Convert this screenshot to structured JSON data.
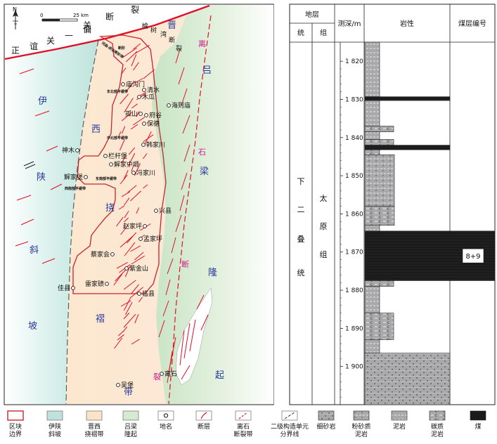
{
  "map": {
    "north_label": "N",
    "scale": {
      "zero": "0",
      "distance": "25 km"
    },
    "fault_labels": {
      "guan_duan_lie": [
        "关",
        "断",
        "裂"
      ],
      "zheng_yi_guan_pian": [
        "正",
        "谊",
        "关",
        "—",
        "偏"
      ],
      "yushuwan": [
        "榆",
        "树",
        "湾",
        "断",
        "裂"
      ],
      "lishi": [
        "离",
        "石",
        "断",
        "裂"
      ]
    },
    "region_labels": {
      "yi": "伊",
      "shan": "陕",
      "xie": "斜",
      "po": "坡",
      "jin": "晋",
      "xi": "西",
      "nao": "挠",
      "zhe": "褶",
      "dai": "带",
      "lv": "吕",
      "liang": "梁",
      "long": "隆",
      "qi": "起"
    },
    "places": [
      {
        "name": "庙沟门",
        "id": "miaogoumen"
      },
      {
        "name": "清水",
        "id": "qingshui"
      },
      {
        "name": "木瓜",
        "id": "mugua"
      },
      {
        "name": "海则庙",
        "id": "haizemiao"
      },
      {
        "name": "孤山",
        "id": "gushan"
      },
      {
        "name": "府谷",
        "id": "fugu"
      },
      {
        "name": "保德",
        "id": "baode"
      },
      {
        "name": "韩家川",
        "id": "hanjiachuan"
      },
      {
        "name": "神木",
        "id": "shenmu"
      },
      {
        "name": "栏杆堡",
        "id": "langanbao"
      },
      {
        "name": "解家中塬",
        "id": "xiejiazhongyuan"
      },
      {
        "name": "解家堡",
        "id": "xiejiabao"
      },
      {
        "name": "冯家川",
        "id": "fengjiachuan"
      },
      {
        "name": "兴县",
        "id": "xingxian"
      },
      {
        "name": "赵家坪",
        "id": "zhaojiaping"
      },
      {
        "name": "孟家坪",
        "id": "mengjiaping"
      },
      {
        "name": "蔡家会",
        "id": "caijiahui"
      },
      {
        "name": "紫金山",
        "id": "zijinshan"
      },
      {
        "name": "佳县",
        "id": "jiaxian"
      },
      {
        "name": "雷家碛",
        "id": "leijiaqi"
      },
      {
        "name": "临县",
        "id": "linxian"
      },
      {
        "name": "离石",
        "id": "lishi"
      },
      {
        "name": "吴堡",
        "id": "wubao"
      }
    ],
    "block_labels": {
      "east_north": "东北部平缓带",
      "mid_north": "中北部平缓带",
      "east_south": "东南部平缓带",
      "west_south": "西南部平缓带",
      "hequ": "河曲-府谷断阶带",
      "tiny2": "断阶"
    }
  },
  "column": {
    "header": {
      "strata": "地层",
      "system": "统",
      "group": "组",
      "depth": "测深/m",
      "lithology": "岩性",
      "seam": "煤层编号"
    },
    "system_name": [
      "下",
      "二",
      "叠",
      "统"
    ],
    "group_name": [
      "太",
      "原",
      "组"
    ],
    "depth_ticks": [
      "1 820",
      "1 830",
      "1 840",
      "1 850",
      "1 860",
      "1 870",
      "1 880",
      "1 890",
      "1 900"
    ],
    "depth_range": [
      1815,
      1910
    ],
    "layers": [
      {
        "top": 1815,
        "bottom": 1829.3,
        "lith": "mudstone",
        "width": "narrow"
      },
      {
        "top": 1829.3,
        "bottom": 1830.3,
        "lith": "coal",
        "width": "wide"
      },
      {
        "top": 1830.3,
        "bottom": 1837,
        "lith": "mudstone",
        "width": "narrow"
      },
      {
        "top": 1837,
        "bottom": 1838.5,
        "lith": "carbonaceous",
        "width": "mid"
      },
      {
        "top": 1838.5,
        "bottom": 1840.5,
        "lith": "mudstone",
        "width": "narrow"
      },
      {
        "top": 1840.5,
        "bottom": 1842,
        "lith": "carbonaceous",
        "width": "mid"
      },
      {
        "top": 1842,
        "bottom": 1843.2,
        "lith": "coal",
        "width": "wide"
      },
      {
        "top": 1843.2,
        "bottom": 1844.5,
        "lith": "carbonaceous",
        "width": "narrow"
      },
      {
        "top": 1844.5,
        "bottom": 1858,
        "lith": "silty_mudstone",
        "width": "mid2"
      },
      {
        "top": 1858,
        "bottom": 1863,
        "lith": "carbonaceous",
        "width": "mid2"
      },
      {
        "top": 1863,
        "bottom": 1864.5,
        "lith": "mudstone",
        "width": "narrow"
      },
      {
        "top": 1864.5,
        "bottom": 1877.5,
        "lith": "coal",
        "width": "full",
        "seam": "8+9"
      },
      {
        "top": 1877.5,
        "bottom": 1879,
        "lith": "carbonaceous",
        "width": "mid"
      },
      {
        "top": 1879,
        "bottom": 1886,
        "lith": "mudstone",
        "width": "narrow"
      },
      {
        "top": 1886,
        "bottom": 1893,
        "lith": "carbonaceous",
        "width": "mid"
      },
      {
        "top": 1893,
        "bottom": 1896.5,
        "lith": "mudstone",
        "width": "narrow"
      },
      {
        "top": 1896.5,
        "bottom": 1910,
        "lith": "sandstone",
        "width": "wide"
      }
    ]
  },
  "legend": [
    {
      "id": "block",
      "label": [
        "区块",
        "边界"
      ]
    },
    {
      "id": "yishan",
      "label": [
        "伊陕",
        "斜坡"
      ]
    },
    {
      "id": "jinxi",
      "label": [
        "晋西",
        "挠褶带"
      ]
    },
    {
      "id": "lvliang",
      "label": [
        "吕梁",
        "隆起"
      ]
    },
    {
      "id": "place",
      "label": [
        "地名"
      ]
    },
    {
      "id": "fault",
      "label": [
        "断层"
      ]
    },
    {
      "id": "lishi",
      "label": [
        "离石",
        "断裂带"
      ]
    },
    {
      "id": "boundary2",
      "label": [
        "二级构造单元",
        "分界线"
      ]
    },
    {
      "id": "sand",
      "label": [
        "细砂岩"
      ]
    },
    {
      "id": "silty",
      "label": [
        "粉砂质",
        "泥岩"
      ]
    },
    {
      "id": "mud",
      "label": [
        "泥岩"
      ]
    },
    {
      "id": "carb",
      "label": [
        "碳质",
        "泥岩"
      ]
    },
    {
      "id": "coal",
      "label": [
        "煤"
      ]
    }
  ],
  "colors": {
    "slope": "#bfe3dc",
    "fold": "#fbe3c8",
    "uplift": "#d6ead0",
    "fault": "#e0102a",
    "block": "#c8242e",
    "label_blue": "#2a3a9a",
    "label_magenta": "#d0188a",
    "coal": "#1a1a1a",
    "rock": "#a9a9ab"
  }
}
